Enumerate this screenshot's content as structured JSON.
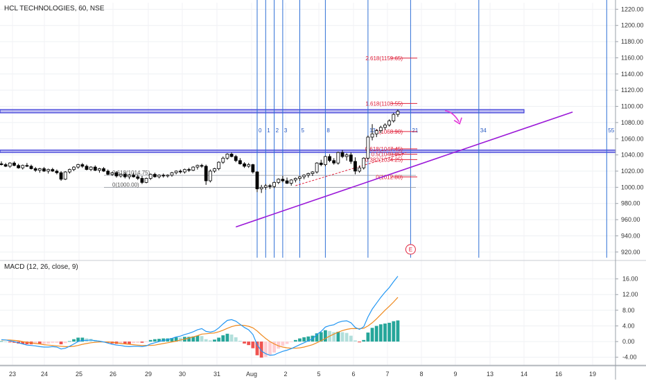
{
  "title": "HCL TECHNOLOGIES, 60, NSE",
  "macd_label": "MACD (12, 26, close, 9)",
  "colors": {
    "up": "#ffffff",
    "down": "#000000",
    "wick": "#000000",
    "fib": "#e0203a",
    "timezone": "#2e6fd6",
    "zone": "#3b3bd8",
    "trend": "#9b19d8",
    "arrow": "#e236d8",
    "macd": "#2196f3",
    "signal": "#ef8a1f",
    "hist_pos_strong": "#26a69a",
    "hist_pos_weak": "#b2dfdb",
    "hist_neg_strong": "#ef5350",
    "hist_neg_weak": "#ffcdd2"
  },
  "chart_data": {
    "type": "candlestick",
    "x_ticks": [
      "23",
      "24",
      "25",
      "26",
      "29",
      "30",
      "31",
      "Aug",
      "2",
      "5",
      "6",
      "7",
      "8",
      "9",
      "13",
      "14",
      "16",
      "19"
    ],
    "price_axis": {
      "ylim": [
        913,
        1228
      ],
      "ticks": [
        "1220.00",
        "1200.00",
        "1180.00",
        "1160.00",
        "1140.00",
        "1120.00",
        "1100.00",
        "1080.00",
        "1060.00",
        "1040.00",
        "1020.00",
        "1000.00",
        "980.00",
        "960.00",
        "940.00",
        "920.00"
      ]
    },
    "macd_axis": {
      "ylim": [
        -6,
        20
      ],
      "ticks": [
        "16.00",
        "12.00",
        "8.00",
        "4.00",
        "0.00",
        "-4.00"
      ]
    },
    "candles": [
      [
        1029,
        1032,
        1027,
        1028
      ],
      [
        1028,
        1030,
        1025,
        1026
      ],
      [
        1026,
        1031,
        1024,
        1030
      ],
      [
        1030,
        1032,
        1026,
        1027
      ],
      [
        1027,
        1029,
        1023,
        1024
      ],
      [
        1024,
        1028,
        1022,
        1027
      ],
      [
        1027,
        1030,
        1025,
        1026
      ],
      [
        1026,
        1028,
        1022,
        1023
      ],
      [
        1023,
        1025,
        1019,
        1021
      ],
      [
        1021,
        1024,
        1018,
        1023
      ],
      [
        1023,
        1025,
        1019,
        1020
      ],
      [
        1020,
        1023,
        1017,
        1022
      ],
      [
        1022,
        1024,
        1019,
        1020
      ],
      [
        1020,
        1022,
        1016,
        1018
      ],
      [
        1018,
        1020,
        1008,
        1010
      ],
      [
        1010,
        1020,
        1009,
        1019
      ],
      [
        1019,
        1023,
        1017,
        1022
      ],
      [
        1022,
        1026,
        1020,
        1025
      ],
      [
        1025,
        1029,
        1023,
        1028
      ],
      [
        1028,
        1030,
        1024,
        1026
      ],
      [
        1026,
        1028,
        1021,
        1022
      ],
      [
        1022,
        1026,
        1020,
        1025
      ],
      [
        1025,
        1027,
        1020,
        1021
      ],
      [
        1021,
        1024,
        1018,
        1023
      ],
      [
        1023,
        1025,
        1019,
        1020
      ],
      [
        1020,
        1022,
        1015,
        1016
      ],
      [
        1016,
        1019,
        1014,
        1018
      ],
      [
        1018,
        1020,
        1012,
        1014
      ],
      [
        1014,
        1017,
        1012,
        1016
      ],
      [
        1016,
        1018,
        1011,
        1013
      ],
      [
        1013,
        1016,
        1010,
        1015
      ],
      [
        1015,
        1018,
        1012,
        1013
      ],
      [
        1013,
        1016,
        1009,
        1011
      ],
      [
        1011,
        1014,
        1004,
        1006
      ],
      [
        1006,
        1012,
        1005,
        1011
      ],
      [
        1011,
        1017,
        1009,
        1016
      ],
      [
        1016,
        1018,
        1012,
        1013
      ],
      [
        1013,
        1016,
        1011,
        1015
      ],
      [
        1015,
        1017,
        1012,
        1014
      ],
      [
        1014,
        1016,
        1012,
        1015
      ],
      [
        1015,
        1019,
        1013,
        1018
      ],
      [
        1018,
        1021,
        1016,
        1020
      ],
      [
        1020,
        1022,
        1017,
        1019
      ],
      [
        1019,
        1023,
        1017,
        1022
      ],
      [
        1022,
        1024,
        1019,
        1021
      ],
      [
        1021,
        1026,
        1020,
        1025
      ],
      [
        1025,
        1028,
        1022,
        1027
      ],
      [
        1027,
        1029,
        1024,
        1026
      ],
      [
        1026,
        1028,
        1003,
        1008
      ],
      [
        1008,
        1022,
        1006,
        1020
      ],
      [
        1020,
        1024,
        1018,
        1023
      ],
      [
        1023,
        1032,
        1021,
        1031
      ],
      [
        1031,
        1038,
        1029,
        1036
      ],
      [
        1036,
        1042,
        1034,
        1041
      ],
      [
        1041,
        1043,
        1037,
        1038
      ],
      [
        1038,
        1040,
        1031,
        1033
      ],
      [
        1033,
        1036,
        1028,
        1029
      ],
      [
        1029,
        1031,
        1024,
        1026
      ],
      [
        1026,
        1030,
        1024,
        1028
      ],
      [
        1028,
        1029,
        1017,
        1019
      ],
      [
        1019,
        1020,
        994,
        998
      ],
      [
        998,
        1003,
        993,
        1000
      ],
      [
        1000,
        1004,
        997,
        1002
      ],
      [
        1002,
        1004,
        998,
        1001
      ],
      [
        1001,
        1007,
        999,
        1006
      ],
      [
        1006,
        1011,
        1004,
        1010
      ],
      [
        1010,
        1014,
        1006,
        1008
      ],
      [
        1008,
        1012,
        1004,
        1005
      ],
      [
        1005,
        1010,
        1002,
        1009
      ],
      [
        1009,
        1012,
        1006,
        1011
      ],
      [
        1011,
        1014,
        1008,
        1013
      ],
      [
        1013,
        1016,
        1010,
        1015
      ],
      [
        1015,
        1018,
        1012,
        1017
      ],
      [
        1017,
        1020,
        1014,
        1019
      ],
      [
        1019,
        1031,
        1017,
        1030
      ],
      [
        1030,
        1034,
        1026,
        1028
      ],
      [
        1028,
        1039,
        1026,
        1038
      ],
      [
        1038,
        1041,
        1031,
        1033
      ],
      [
        1033,
        1036,
        1028,
        1030
      ],
      [
        1030,
        1044,
        1028,
        1043
      ],
      [
        1043,
        1046,
        1036,
        1038
      ],
      [
        1038,
        1042,
        1033,
        1040
      ],
      [
        1040,
        1043,
        1029,
        1032
      ],
      [
        1032,
        1037,
        1016,
        1020
      ],
      [
        1020,
        1027,
        1018,
        1024
      ],
      [
        1024,
        1037,
        1022,
        1036
      ],
      [
        1036,
        1064,
        1034,
        1062
      ],
      [
        1062,
        1078,
        1058,
        1066
      ],
      [
        1066,
        1072,
        1062,
        1070
      ],
      [
        1070,
        1076,
        1067,
        1074
      ],
      [
        1074,
        1079,
        1071,
        1077
      ],
      [
        1077,
        1084,
        1075,
        1082
      ],
      [
        1082,
        1092,
        1080,
        1090
      ],
      [
        1090,
        1096,
        1087,
        1094
      ]
    ],
    "fib_levels": [
      {
        "label": "2.618(1159.65)",
        "value": 1159.65
      },
      {
        "label": "1.618(1103.55)",
        "value": 1103.55
      },
      {
        "label": "1(1068.90)",
        "value": 1068.9
      },
      {
        "label": "0.618(1047.45)",
        "value": 1047.45
      },
      {
        "label": "0.5(1040.85)",
        "value": 1040.85
      },
      {
        "label": "0.382(1034.25)",
        "value": 1034.25
      },
      {
        "label": "0(1012.80)",
        "value": 1012.8
      }
    ],
    "fib_levels_old": [
      {
        "label": "0.618(1014.75)",
        "value": 1014.75
      },
      {
        "label": "0(1000.00)",
        "value": 1000.0
      }
    ],
    "time_zones": [
      {
        "label": "0",
        "bar": 60
      },
      {
        "label": "1",
        "bar": 62
      },
      {
        "label": "2",
        "bar": 64
      },
      {
        "label": "3",
        "bar": 66
      },
      {
        "label": "5",
        "bar": 70
      },
      {
        "label": "8",
        "bar": 76
      },
      {
        "label": "13",
        "bar": 86
      },
      {
        "label": "21",
        "bar": 96
      },
      {
        "label": "34",
        "bar": 112
      },
      {
        "label": "55",
        "bar": 142
      }
    ],
    "resistance_zones": [
      [
        1092,
        1096
      ],
      [
        1043,
        1046
      ]
    ],
    "trendline": {
      "from": {
        "bar": 55,
        "price": 951
      },
      "to": {
        "bar": 134,
        "price": 1093
      }
    },
    "earnings_marker": "E",
    "macd": [
      0.5,
      0.4,
      0.2,
      0.0,
      -0.3,
      -0.6,
      -0.9,
      -1.0,
      -1.1,
      -1.3,
      -1.4,
      -1.4,
      -1.3,
      -1.4,
      -1.9,
      -1.7,
      -1.2,
      -0.6,
      0.0,
      0.3,
      0.3,
      0.4,
      0.2,
      0.1,
      -0.1,
      -0.4,
      -0.7,
      -0.9,
      -1.0,
      -1.2,
      -1.3,
      -1.2,
      -1.2,
      -1.3,
      -1.1,
      -0.6,
      -0.3,
      0.0,
      0.3,
      0.5,
      0.8,
      1.2,
      1.4,
      1.8,
      2.1,
      2.5,
      3.0,
      3.3,
      2.6,
      2.4,
      2.7,
      3.5,
      4.5,
      5.4,
      5.6,
      5.2,
      4.4,
      3.6,
      3.0,
      1.8,
      -0.8,
      -2.4,
      -3.1,
      -3.5,
      -3.4,
      -2.9,
      -2.5,
      -2.2,
      -1.8,
      -1.3,
      -0.8,
      -0.3,
      0.2,
      0.7,
      1.8,
      2.6,
      3.7,
      4.1,
      4.3,
      4.9,
      5.2,
      5.3,
      4.8,
      3.6,
      3.1,
      3.8,
      6.3,
      8.3,
      9.8,
      11.3,
      12.6,
      13.8,
      15.3,
      16.7
    ],
    "signal": [
      0.4,
      0.4,
      0.4,
      0.3,
      0.2,
      0.0,
      -0.2,
      -0.3,
      -0.5,
      -0.6,
      -0.8,
      -0.9,
      -1.0,
      -1.1,
      -1.2,
      -1.3,
      -1.3,
      -1.2,
      -1.0,
      -0.7,
      -0.5,
      -0.3,
      -0.2,
      -0.1,
      -0.1,
      -0.1,
      -0.2,
      -0.3,
      -0.5,
      -0.6,
      -0.7,
      -0.8,
      -0.9,
      -1.0,
      -1.0,
      -1.0,
      -0.9,
      -0.7,
      -0.5,
      -0.3,
      -0.1,
      0.1,
      0.4,
      0.6,
      0.9,
      1.2,
      1.5,
      1.9,
      2.0,
      2.1,
      2.2,
      2.5,
      2.9,
      3.4,
      3.8,
      4.1,
      4.2,
      4.1,
      3.9,
      3.5,
      2.7,
      1.7,
      0.8,
      0.0,
      -0.6,
      -1.1,
      -1.4,
      -1.6,
      -1.7,
      -1.7,
      -1.6,
      -1.4,
      -1.1,
      -0.8,
      -0.3,
      0.2,
      0.8,
      1.4,
      1.9,
      2.4,
      2.8,
      3.1,
      3.3,
      3.3,
      3.3,
      3.4,
      4.0,
      4.8,
      5.8,
      6.9,
      8.0,
      9.0,
      10.1,
      11.3
    ]
  }
}
